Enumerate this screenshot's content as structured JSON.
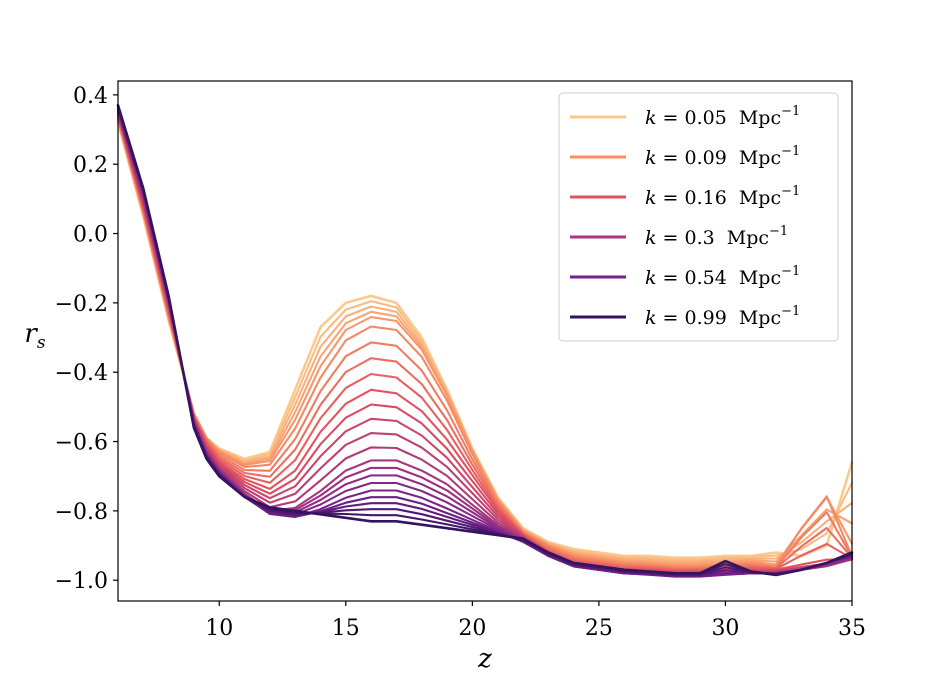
{
  "chart_data": {
    "type": "line",
    "xlabel": "z",
    "ylabel": "r_s",
    "xlim": [
      6,
      35
    ],
    "ylim": [
      -1.06,
      0.44
    ],
    "xticks": [
      10,
      15,
      20,
      25,
      30,
      35
    ],
    "xtick_labels": [
      "10",
      "15",
      "20",
      "25",
      "30",
      "35"
    ],
    "yticks": [
      0.4,
      0.2,
      0.0,
      -0.2,
      -0.4,
      -0.6,
      -0.8,
      -1.0
    ],
    "ytick_labels": [
      "0.4",
      "0.2",
      "0.0",
      "−0.2",
      "−0.4",
      "−0.6",
      "−0.8",
      "−1.0"
    ],
    "legend_position": "top-right",
    "legend": [
      {
        "label": "k = 0.05  Mpc⁻¹",
        "k_text": "k",
        "value_text": " = 0.05",
        "unit_text": "Mpc",
        "exp_text": "−1",
        "color": "#fcc98d"
      },
      {
        "label": "k = 0.09  Mpc⁻¹",
        "k_text": "k",
        "value_text": " = 0.09",
        "unit_text": "Mpc",
        "exp_text": "−1",
        "color": "#f68f63"
      },
      {
        "label": "k = 0.16  Mpc⁻¹",
        "k_text": "k",
        "value_text": " = 0.16",
        "unit_text": "Mpc",
        "exp_text": "−1",
        "color": "#e34f5f"
      },
      {
        "label": "k = 0.3  Mpc⁻¹",
        "k_text": "k",
        "value_text": " = 0.3",
        "unit_text": "Mpc",
        "exp_text": "−1",
        "color": "#a8377c"
      },
      {
        "label": "k = 0.54  Mpc⁻¹",
        "k_text": "k",
        "value_text": " = 0.54",
        "unit_text": "Mpc",
        "exp_text": "−1",
        "color": "#76218c"
      },
      {
        "label": "k = 0.99  Mpc⁻¹",
        "k_text": "k",
        "value_text": " = 0.99",
        "unit_text": "Mpc",
        "exp_text": "−1",
        "color": "#34135f"
      }
    ],
    "series_count": 24,
    "color_range": [
      "#fcc98d",
      "#34135f"
    ],
    "series": [
      {
        "name": "k = 0.05 Mpc^-1",
        "x": [
          6,
          7,
          8,
          9,
          9.5,
          10,
          11,
          12,
          13,
          14,
          15,
          16,
          17,
          18,
          19,
          20,
          21,
          22,
          23,
          24,
          25,
          26,
          27,
          28,
          29,
          30,
          31,
          32,
          33,
          34,
          35
        ],
        "values": [
          0.32,
          0.05,
          -0.25,
          -0.52,
          -0.59,
          -0.62,
          -0.65,
          -0.63,
          -0.45,
          -0.27,
          -0.2,
          -0.18,
          -0.2,
          -0.3,
          -0.45,
          -0.62,
          -0.76,
          -0.85,
          -0.89,
          -0.91,
          -0.92,
          -0.93,
          -0.93,
          -0.935,
          -0.935,
          -0.93,
          -0.93,
          -0.92,
          -0.93,
          -0.9,
          -0.66
        ]
      },
      {
        "name": "k = 0.09 Mpc^-1",
        "x": [
          6,
          7,
          8,
          9,
          9.5,
          10,
          11,
          12,
          13,
          14,
          15,
          16,
          17,
          18,
          19,
          20,
          21,
          22,
          23,
          24,
          25,
          26,
          27,
          28,
          29,
          30,
          31,
          32,
          33,
          34,
          35
        ],
        "values": [
          0.33,
          0.06,
          -0.24,
          -0.52,
          -0.59,
          -0.63,
          -0.67,
          -0.66,
          -0.55,
          -0.4,
          -0.29,
          -0.25,
          -0.26,
          -0.34,
          -0.47,
          -0.63,
          -0.77,
          -0.86,
          -0.9,
          -0.93,
          -0.94,
          -0.95,
          -0.955,
          -0.96,
          -0.96,
          -0.955,
          -0.95,
          -0.96,
          -0.84,
          -0.74,
          -0.93
        ]
      },
      {
        "name": "k = 0.16 Mpc^-1",
        "x": [
          6,
          7,
          8,
          9,
          9.5,
          10,
          11,
          12,
          13,
          14,
          15,
          16,
          17,
          18,
          19,
          20,
          21,
          22,
          23,
          24,
          25,
          26,
          27,
          28,
          29,
          30,
          31,
          32,
          33,
          34,
          35
        ],
        "values": [
          0.34,
          0.08,
          -0.22,
          -0.53,
          -0.61,
          -0.66,
          -0.71,
          -0.74,
          -0.69,
          -0.58,
          -0.5,
          -0.46,
          -0.47,
          -0.52,
          -0.6,
          -0.7,
          -0.8,
          -0.87,
          -0.92,
          -0.95,
          -0.96,
          -0.97,
          -0.97,
          -0.975,
          -0.975,
          -0.97,
          -0.97,
          -0.97,
          -0.96,
          -0.95,
          -0.94
        ]
      },
      {
        "name": "k = 0.3 Mpc^-1",
        "x": [
          6,
          7,
          8,
          9,
          9.5,
          10,
          11,
          12,
          13,
          14,
          15,
          16,
          17,
          18,
          19,
          20,
          21,
          22,
          23,
          24,
          25,
          26,
          27,
          28,
          29,
          30,
          31,
          32,
          33,
          34,
          35
        ],
        "values": [
          0.35,
          0.1,
          -0.2,
          -0.54,
          -0.63,
          -0.68,
          -0.75,
          -0.8,
          -0.79,
          -0.74,
          -0.68,
          -0.65,
          -0.65,
          -0.68,
          -0.72,
          -0.78,
          -0.84,
          -0.88,
          -0.93,
          -0.96,
          -0.97,
          -0.98,
          -0.98,
          -0.985,
          -0.985,
          -0.98,
          -0.98,
          -0.98,
          -0.97,
          -0.96,
          -0.94
        ]
      },
      {
        "name": "k = 0.54 Mpc^-1",
        "x": [
          6,
          7,
          8,
          9,
          9.5,
          10,
          11,
          12,
          13,
          14,
          15,
          16,
          17,
          18,
          19,
          20,
          21,
          22,
          23,
          24,
          25,
          26,
          27,
          28,
          29,
          30,
          31,
          32,
          33,
          34,
          35
        ],
        "values": [
          0.36,
          0.12,
          -0.19,
          -0.55,
          -0.64,
          -0.69,
          -0.76,
          -0.81,
          -0.82,
          -0.8,
          -0.77,
          -0.75,
          -0.75,
          -0.77,
          -0.8,
          -0.83,
          -0.86,
          -0.89,
          -0.93,
          -0.96,
          -0.97,
          -0.98,
          -0.985,
          -0.99,
          -0.99,
          -0.985,
          -0.98,
          -0.98,
          -0.97,
          -0.95,
          -0.93
        ]
      },
      {
        "name": "k = 0.99 Mpc^-1",
        "x": [
          6,
          7,
          8,
          9,
          9.5,
          10,
          11,
          12,
          13,
          14,
          15,
          16,
          17,
          18,
          19,
          20,
          21,
          22,
          23,
          24,
          25,
          26,
          27,
          28,
          29,
          30,
          31,
          32,
          33,
          34,
          35
        ],
        "values": [
          0.37,
          0.13,
          -0.18,
          -0.56,
          -0.65,
          -0.7,
          -0.76,
          -0.79,
          -0.8,
          -0.81,
          -0.82,
          -0.83,
          -0.83,
          -0.84,
          -0.85,
          -0.86,
          -0.87,
          -0.88,
          -0.92,
          -0.95,
          -0.96,
          -0.97,
          -0.975,
          -0.98,
          -0.98,
          -0.945,
          -0.975,
          -0.985,
          -0.97,
          -0.95,
          -0.92
        ]
      }
    ]
  }
}
